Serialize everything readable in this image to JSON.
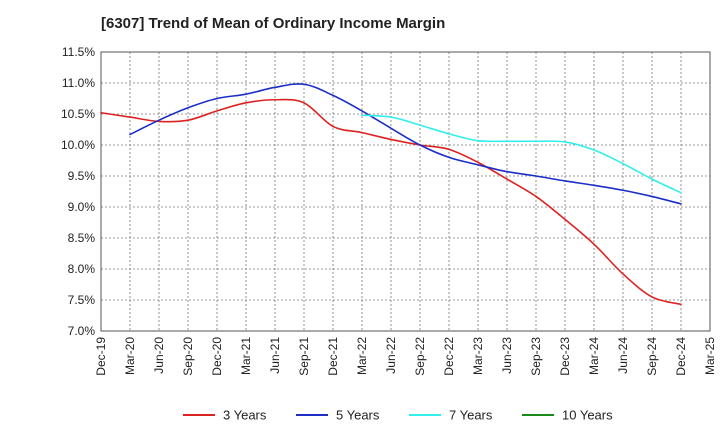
{
  "chart_data": {
    "type": "line",
    "title": "[6307]  Trend of Mean of Ordinary Income Margin",
    "xlabel": "",
    "ylabel": "",
    "ylim": [
      7.0,
      11.5
    ],
    "grid": true,
    "legend_position": "bottom",
    "y_ticks": [
      "11.5%",
      "11.0%",
      "10.5%",
      "10.0%",
      "9.5%",
      "9.0%",
      "8.5%",
      "8.0%",
      "7.5%",
      "7.0%"
    ],
    "y_tick_values": [
      11.5,
      11.0,
      10.5,
      10.0,
      9.5,
      9.0,
      8.5,
      8.0,
      7.5,
      7.0
    ],
    "categories": [
      "Dec-19",
      "Mar-20",
      "Jun-20",
      "Sep-20",
      "Dec-20",
      "Mar-21",
      "Jun-21",
      "Sep-21",
      "Dec-21",
      "Mar-22",
      "Jun-22",
      "Sep-22",
      "Dec-22",
      "Mar-23",
      "Jun-23",
      "Sep-23",
      "Dec-23",
      "Mar-24",
      "Jun-24",
      "Sep-24",
      "Dec-24",
      "Mar-25"
    ],
    "series": [
      {
        "name": "3 Years",
        "color": "#dd2222",
        "values": [
          10.52,
          10.45,
          10.38,
          10.4,
          10.55,
          10.68,
          10.73,
          10.68,
          10.3,
          10.2,
          10.09,
          10.0,
          9.93,
          9.72,
          9.45,
          9.17,
          8.8,
          8.4,
          7.92,
          7.55,
          7.43,
          null
        ]
      },
      {
        "name": "5 Years",
        "color": "#1c2ec8",
        "values": [
          null,
          10.17,
          10.4,
          10.6,
          10.75,
          10.82,
          10.93,
          10.98,
          10.8,
          10.55,
          10.27,
          10.0,
          9.8,
          9.68,
          9.57,
          9.5,
          9.42,
          9.35,
          9.27,
          9.17,
          9.05,
          null
        ]
      },
      {
        "name": "7 Years",
        "color": "#33eeee",
        "values": [
          null,
          null,
          null,
          null,
          null,
          null,
          null,
          null,
          null,
          10.48,
          10.45,
          10.32,
          10.18,
          10.07,
          10.06,
          10.06,
          10.05,
          9.92,
          9.7,
          9.45,
          9.23,
          null
        ]
      },
      {
        "name": "10 Years",
        "color": "#1a8a1a",
        "values": [
          null,
          null,
          null,
          null,
          null,
          null,
          null,
          null,
          null,
          null,
          null,
          null,
          null,
          null,
          null,
          null,
          null,
          null,
          null,
          null,
          null,
          null
        ]
      }
    ]
  }
}
